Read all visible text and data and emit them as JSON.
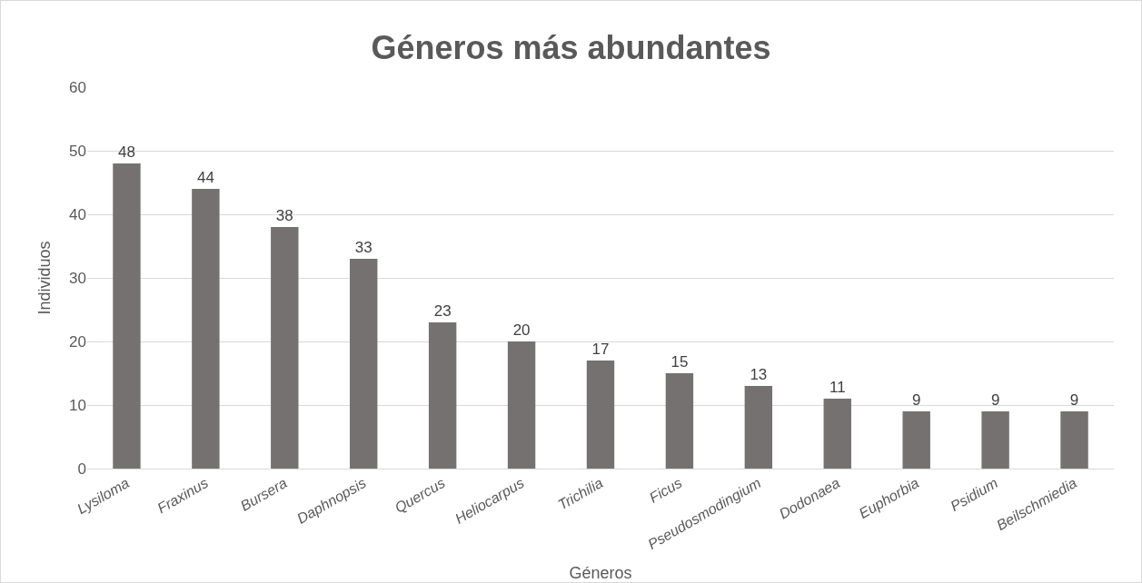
{
  "chart_data": {
    "type": "bar",
    "title": "Géneros más abundantes",
    "xlabel": "Géneros",
    "ylabel": "Individuos",
    "categories": [
      "Lysiloma",
      "Fraxinus",
      "Bursera",
      "Daphnopsis",
      "Quercus",
      "Heliocarpus",
      "Trichilia",
      "Ficus",
      "Pseudosmodingium",
      "Dodonaea",
      "Euphorbia",
      "Psidium",
      "Beilschmiedia"
    ],
    "values": [
      48,
      44,
      38,
      33,
      23,
      20,
      17,
      15,
      13,
      11,
      9,
      9,
      9
    ],
    "color": "#767171",
    "ylim": [
      0,
      60
    ],
    "yticks": [
      0,
      10,
      20,
      30,
      40,
      50,
      60
    ],
    "grid": "y",
    "data_labels": true
  }
}
